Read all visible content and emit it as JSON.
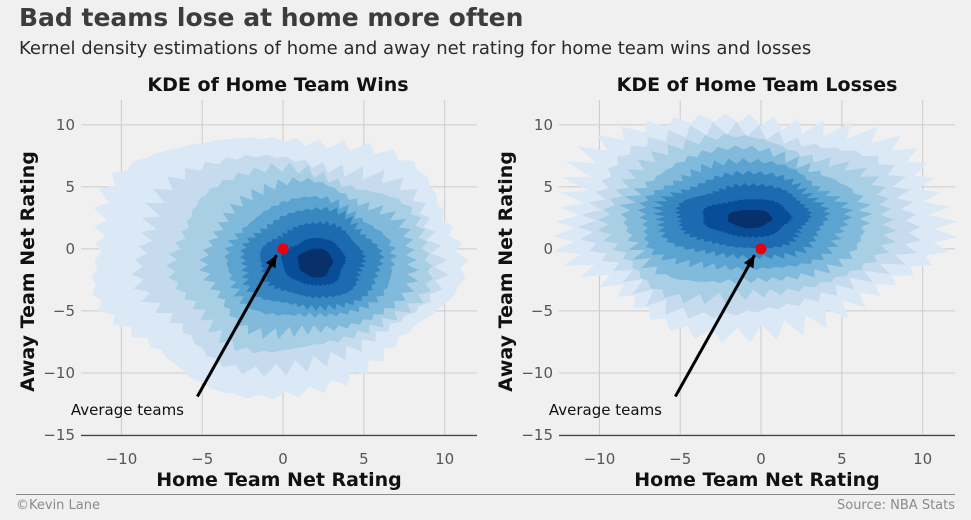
{
  "header": {
    "title": "Bad teams lose at home more often",
    "subtitle": "Kernel density estimations of home and away net rating for home team wins and losses"
  },
  "footer": {
    "credit": "©Kevin Lane",
    "source": "Source: NBA Stats"
  },
  "colors": {
    "background": "#f0f0f0",
    "grid": "#cbcbcb",
    "tick_text": "#555555",
    "marker": "#e8000b",
    "levels": [
      "#dbe9f6",
      "#c7dbef",
      "#a9cfe5",
      "#82badb",
      "#5ba3d0",
      "#3887c0",
      "#1c6aaf",
      "#084d97",
      "#08306b"
    ]
  },
  "chart_data": [
    {
      "type": "kde",
      "title": "KDE of Home Team Wins",
      "xlabel": "Home Team Net Rating",
      "ylabel": "Away Team Net Rating",
      "xlim": [
        -12.5,
        12
      ],
      "ylim": [
        -15,
        12
      ],
      "xticks": [
        -10,
        -5,
        0,
        5,
        10
      ],
      "yticks": [
        -15,
        -10,
        -5,
        0,
        5,
        10
      ],
      "density_peak": [
        2,
        -1
      ],
      "point": {
        "x": 0,
        "y": 0
      },
      "annotation": {
        "text": "Average teams",
        "x": -13,
        "y": -13.3,
        "arrow_from": [
          -5.3,
          -11.9
        ],
        "arrow_to": [
          -0.4,
          -0.5
        ]
      }
    },
    {
      "type": "kde",
      "title": "KDE of Home Team Losses",
      "xlabel": "Home Team Net Rating",
      "ylabel": "Away Team Net Rating",
      "xlim": [
        -12.5,
        12
      ],
      "ylim": [
        -15,
        12
      ],
      "xticks": [
        -10,
        -5,
        0,
        5,
        10
      ],
      "yticks": [
        -15,
        -10,
        -5,
        0,
        5,
        10
      ],
      "density_peak": [
        -1,
        2.5
      ],
      "point": {
        "x": 0,
        "y": 0
      },
      "annotation": {
        "text": "Average teams",
        "x": -13,
        "y": -13.3,
        "arrow_from": [
          -5.3,
          -11.9
        ],
        "arrow_to": [
          -0.4,
          -0.5
        ]
      }
    }
  ]
}
